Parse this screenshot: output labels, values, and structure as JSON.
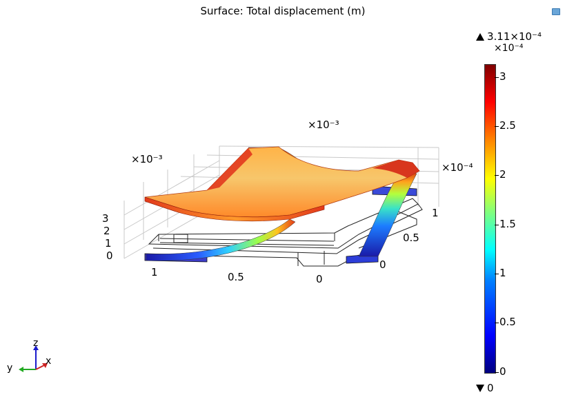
{
  "plot": {
    "title": "Surface: Total displacement (m)",
    "exp_top": "×10⁻³",
    "exp_left": "×10⁻³",
    "exp_right": "×10⁻⁴",
    "z_ticks": [
      "3",
      "2",
      "1",
      "0"
    ],
    "left_ticks": [
      "1",
      "0.5",
      "0"
    ],
    "right_ticks": [
      "0",
      "0.5",
      "1"
    ]
  },
  "colorbar": {
    "max_label": "3.11×10⁻⁴",
    "min_label": "0",
    "exponent": "×10⁻⁴",
    "ticks": [
      "3",
      "2.5",
      "2",
      "1.5",
      "1",
      "0.5",
      "0"
    ]
  },
  "triad": {
    "z": "z",
    "y": "y",
    "x": "x"
  },
  "icons": {
    "corner": "plot-window-icon"
  }
}
